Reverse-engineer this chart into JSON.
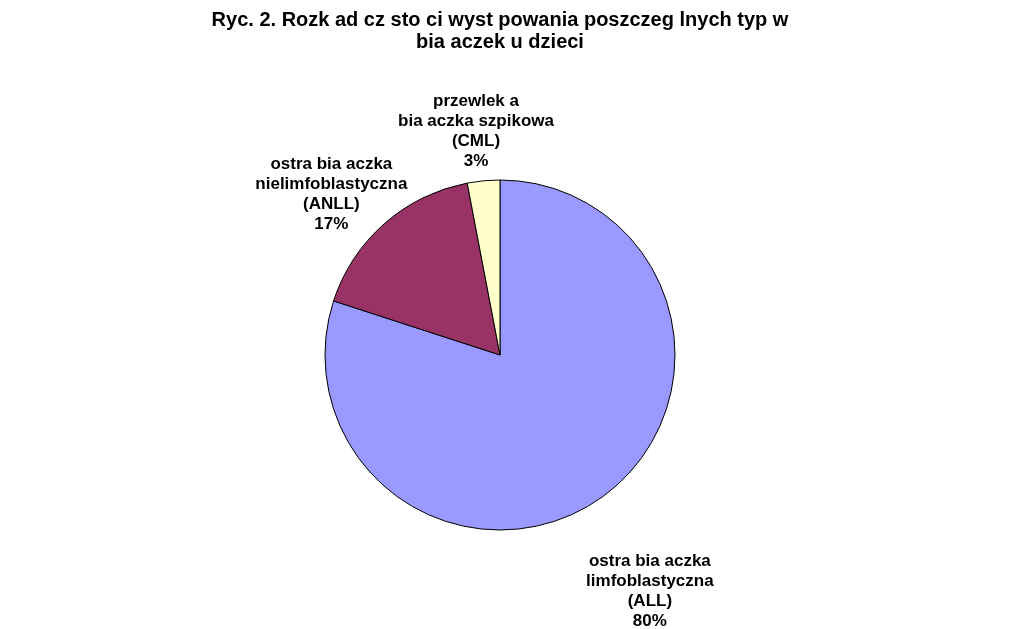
{
  "chart_data": {
    "type": "pie",
    "title": "Ryc. 2. Rozk ad cz  sto  ci wyst  powania poszczeg  lnych typ  w\nbia aczek u dzieci",
    "categories": [
      "ostra bia aczka\nlimfoblastyczna\n(ALL)",
      "ostra bia aczka\nnielimfoblastyczna\n(ANLL)",
      "przewlek a\nbia aczka szpikowa\n(CML)"
    ],
    "values": [
      80,
      17,
      3
    ],
    "value_labels": [
      "80%",
      "17%",
      "3%"
    ],
    "colors": [
      "#9999ff",
      "#993366",
      "#ffffcc"
    ],
    "legend": false
  }
}
